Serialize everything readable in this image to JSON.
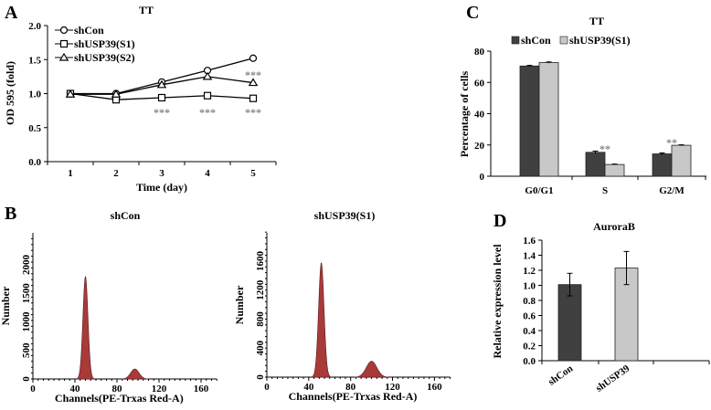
{
  "chart_data": [
    {
      "panel_label": "A",
      "type": "line",
      "title": "TT",
      "xlabel": "Time (day)",
      "ylabel": "OD 595 (fold)",
      "x": [
        1,
        2,
        3,
        4,
        5
      ],
      "x_tick_labels": [
        "1",
        "2",
        "3",
        "4",
        "5"
      ],
      "ylim": [
        0,
        2.0
      ],
      "y_ticks": [
        0,
        0.5,
        1.0,
        1.5,
        2.0
      ],
      "y_tick_labels": [
        "0.0",
        "0.5",
        "1.0",
        "1.5",
        "2.0"
      ],
      "legend_position": "top-left",
      "series": [
        {
          "name": "shCon",
          "marker": "circle",
          "values": [
            1.0,
            1.0,
            1.17,
            1.34,
            1.52
          ]
        },
        {
          "name": "shUSP39(S1)",
          "marker": "square",
          "values": [
            1.0,
            0.91,
            0.94,
            0.97,
            0.93
          ]
        },
        {
          "name": "shUSP39(S2)",
          "marker": "triangle",
          "values": [
            0.99,
            0.99,
            1.13,
            1.25,
            1.16
          ]
        }
      ],
      "annotations": [
        {
          "text": "***",
          "x": 3,
          "y": 0.75
        },
        {
          "text": "***",
          "x": 4,
          "y": 0.75
        },
        {
          "text": "***",
          "x": 5,
          "y": 0.75
        },
        {
          "text": "***",
          "x": 5,
          "y": 1.3
        }
      ]
    },
    {
      "panel_label": "B",
      "type": "area",
      "title": "shCon",
      "xlabel": "Channels(PE-Trxas  Red-A)",
      "ylabel": "Number",
      "xlim": [
        0,
        175
      ],
      "x_ticks": [
        0,
        40,
        80,
        120,
        160
      ],
      "x_tick_labels": [
        "0",
        "40",
        "80",
        "120",
        "160"
      ],
      "ylim": [
        0,
        2560
      ],
      "y_ticks": [
        0,
        500,
        1000,
        1500,
        2000
      ],
      "y_tick_labels": [
        "0",
        "500",
        "1000",
        "1500",
        "2000"
      ],
      "peaks": [
        {
          "phase": "G0/G1",
          "channel": 50,
          "sd": 2.4,
          "count": 1800
        },
        {
          "phase": "G2/M",
          "channel": 97,
          "sd": 4.0,
          "count": 175
        }
      ],
      "s_phase_level": 45,
      "observed_peak_counts": [
        2030,
        210
      ]
    },
    {
      "type": "area",
      "title": "shUSP39(S1)",
      "xlabel": "Channels(PE-Trxas  Red-A)",
      "ylabel": "Number",
      "xlim": [
        0,
        175
      ],
      "x_ticks": [
        0,
        40,
        80,
        120,
        160
      ],
      "x_tick_labels": [
        "0",
        "40",
        "80",
        "120",
        "160"
      ],
      "ylim": [
        0,
        2000
      ],
      "y_ticks": [
        0,
        400,
        800,
        1200,
        1600
      ],
      "y_tick_labels": [
        "0",
        "400",
        "800",
        "1200",
        "1600"
      ],
      "peaks": [
        {
          "phase": "G0/G1",
          "channel": 52,
          "sd": 2.6,
          "count": 1580
        },
        {
          "phase": "G2/M",
          "channel": 100,
          "sd": 5.0,
          "count": 220
        }
      ],
      "s_phase_level": 25,
      "observed_peak_counts": [
        1850,
        250
      ]
    },
    {
      "panel_label": "C",
      "type": "bar",
      "title": "TT",
      "xlabel": "",
      "ylabel": "Percentage of cells",
      "categories": [
        "G0/G1",
        "S",
        "G2/M"
      ],
      "ylim": [
        0,
        80
      ],
      "y_ticks": [
        0,
        20,
        40,
        60,
        80
      ],
      "y_tick_labels": [
        "0",
        "20",
        "40",
        "60",
        "80"
      ],
      "legend_position": "top",
      "series": [
        {
          "name": "shCon",
          "color": "#404040",
          "values": [
            70.5,
            15.3,
            14.3
          ],
          "errors": [
            0.4,
            0.8,
            0.6
          ]
        },
        {
          "name": "shUSP39(S1)",
          "color": "#c8c8c8",
          "values": [
            72.7,
            7.5,
            19.8
          ],
          "errors": [
            0.4,
            0.3,
            0.3
          ]
        }
      ],
      "annotations": [
        {
          "text": "**",
          "category": "S"
        },
        {
          "text": "**",
          "category": "G2/M"
        }
      ]
    },
    {
      "panel_label": "D",
      "type": "bar",
      "title": "AuroraB",
      "xlabel": "",
      "ylabel": "Relative expression level",
      "categories": [
        "shCon",
        "shUSP39"
      ],
      "ylim": [
        0,
        1.6
      ],
      "y_ticks": [
        0,
        0.2,
        0.4,
        0.6,
        0.8,
        1.0,
        1.2,
        1.4,
        1.6
      ],
      "y_tick_labels": [
        "0.0",
        "0.2",
        "0.4",
        "0.6",
        "0.8",
        "1.0",
        "1.2",
        "1.4",
        "1.6"
      ],
      "values": [
        1.01,
        1.23
      ],
      "errors": [
        0.15,
        0.22
      ],
      "colors": [
        "#404040",
        "#c8c8c8"
      ]
    }
  ]
}
